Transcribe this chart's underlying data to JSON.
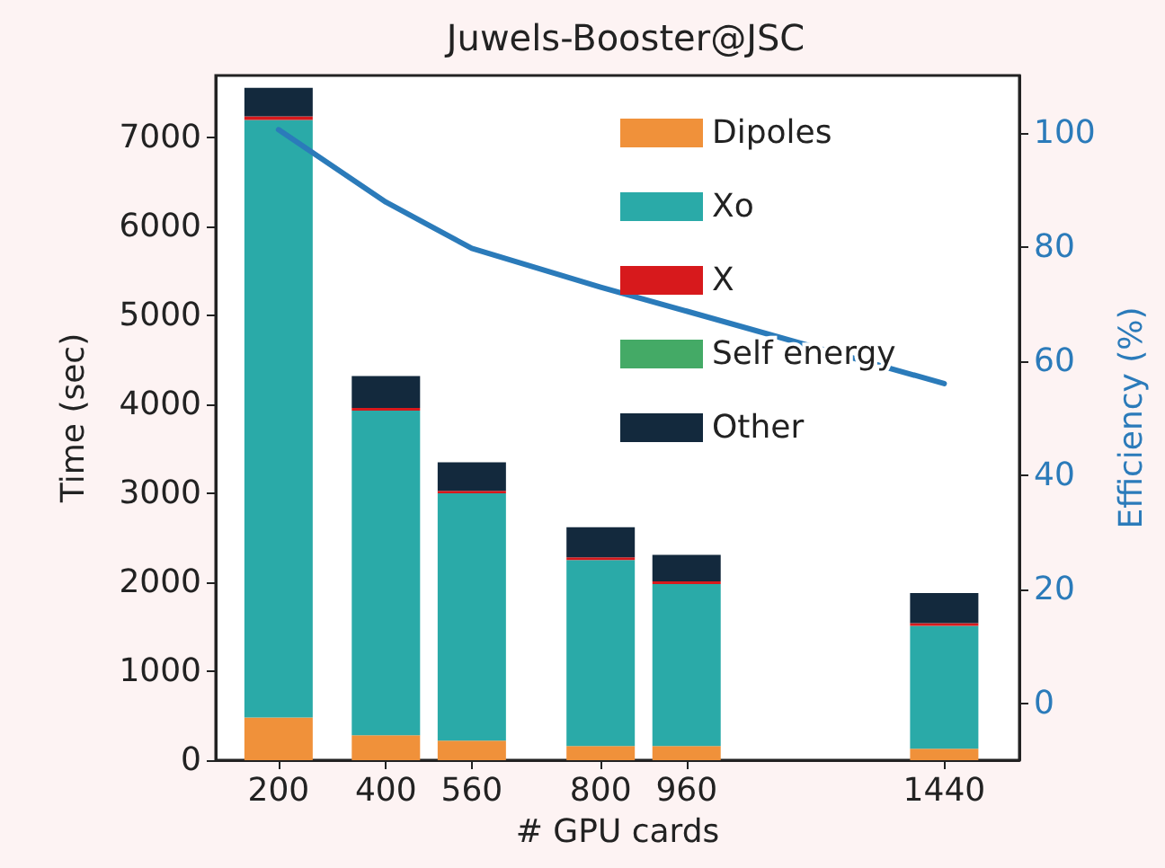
{
  "chart_data": {
    "type": "bar",
    "title": "Juwels-Booster@JSC",
    "xlabel": "# GPU cards",
    "ylabel": "Time (sec)",
    "y2label": "Efficiency (%)",
    "x": [
      200,
      400,
      560,
      800,
      960,
      1440
    ],
    "stacked": true,
    "series": [
      {
        "name": "Dipoles",
        "color": "#f0913a",
        "values": [
          480,
          280,
          220,
          160,
          160,
          130
        ]
      },
      {
        "name": "Xo",
        "color": "#2aaaa8",
        "values": [
          6720,
          3650,
          2780,
          2090,
          1820,
          1380
        ]
      },
      {
        "name": "X",
        "color": "#d7191c",
        "values": [
          40,
          30,
          30,
          30,
          30,
          30
        ]
      },
      {
        "name": "Self energy",
        "color": "#44aa66",
        "values": [
          0,
          0,
          0,
          0,
          0,
          0
        ]
      },
      {
        "name": "Other",
        "color": "#13293d",
        "values": [
          320,
          360,
          320,
          340,
          300,
          340
        ]
      },
      {
        "type": "line",
        "axis": "y2",
        "color": "#2b7bba",
        "values": [
          100.5,
          87.8,
          79.7,
          72.9,
          68.7,
          56
        ]
      }
    ],
    "xlim": [
      83,
      1580
    ],
    "xticks": [
      200,
      400,
      560,
      800,
      960,
      1440
    ],
    "ylim": [
      0,
      7700
    ],
    "yticks": [
      0,
      1000,
      2000,
      3000,
      4000,
      5000,
      6000,
      7000
    ],
    "y2lim": [
      -10,
      110
    ],
    "y2ticks": [
      0,
      20,
      40,
      60,
      80,
      100
    ],
    "legend": "top right",
    "grid": false,
    "marker": "none"
  }
}
